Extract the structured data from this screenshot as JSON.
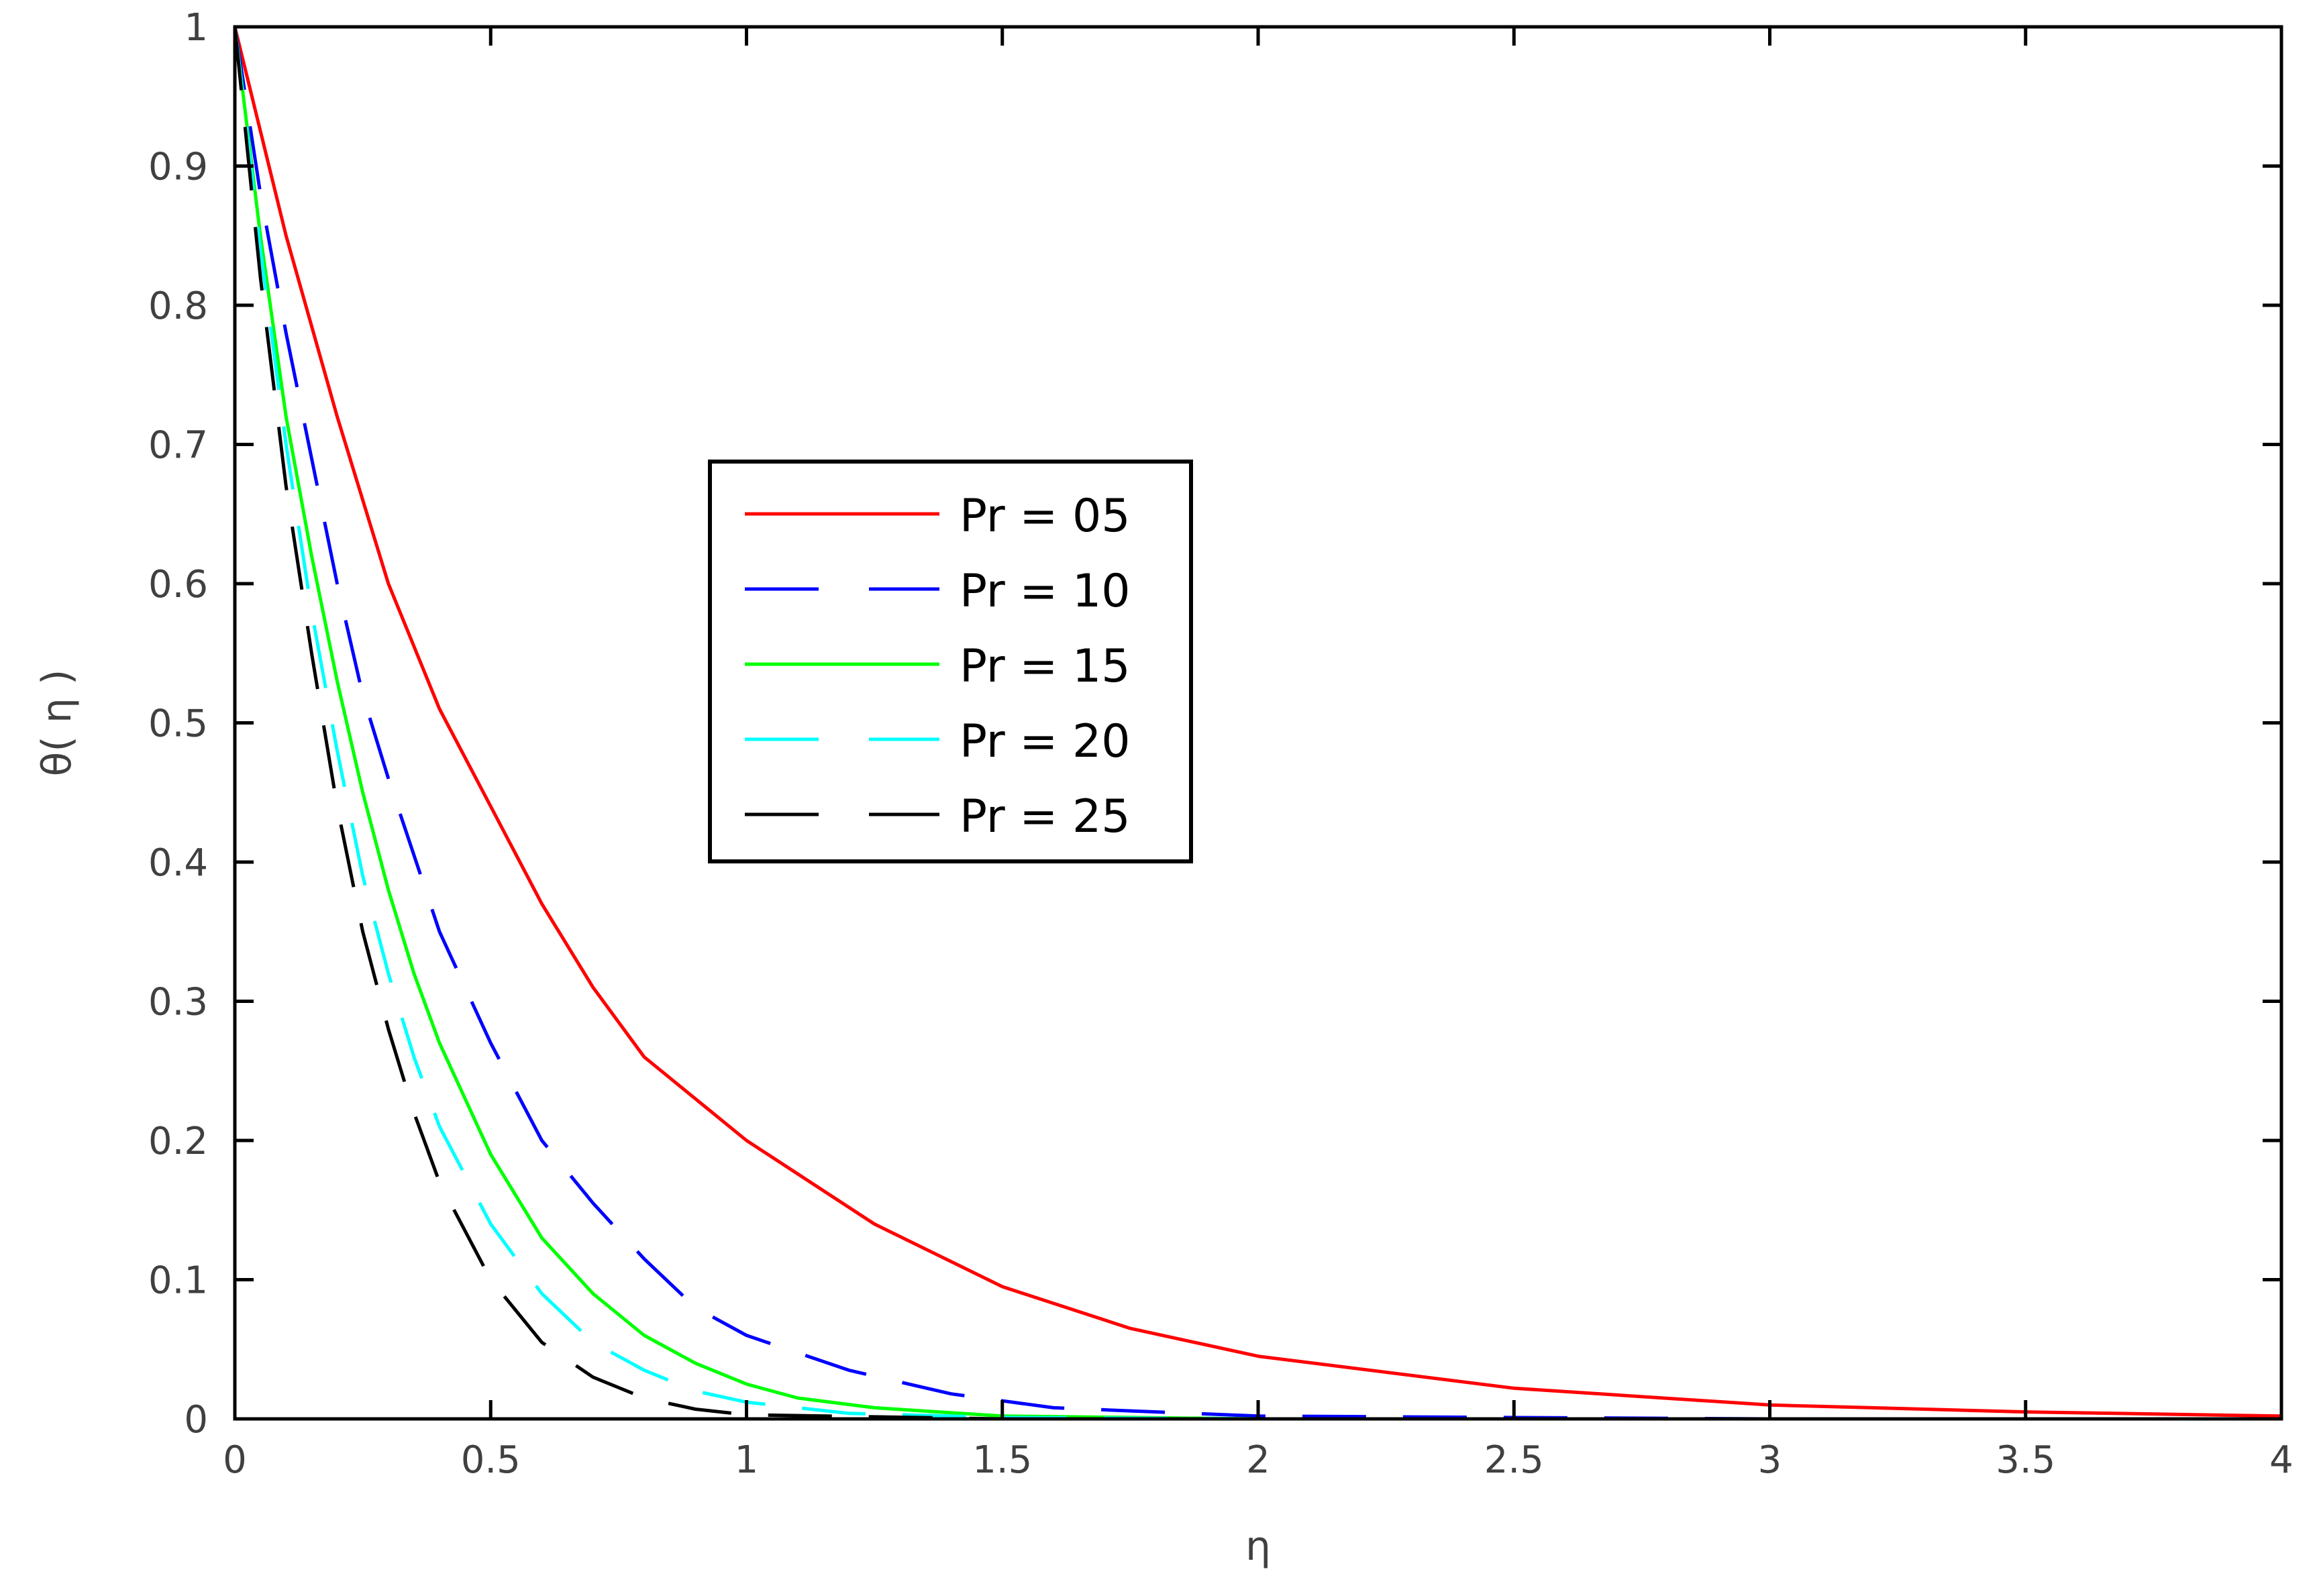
{
  "chart_data": {
    "type": "line",
    "title": "",
    "xlabel": "η",
    "ylabel": "θ( η )",
    "xlim": [
      0,
      4
    ],
    "ylim": [
      0,
      1
    ],
    "xticks": [
      "0",
      "0.5",
      "1",
      "1.5",
      "2",
      "2.5",
      "3",
      "3.5",
      "4"
    ],
    "yticks": [
      "0",
      "0.1",
      "0.2",
      "0.3",
      "0.4",
      "0.5",
      "0.6",
      "0.7",
      "0.8",
      "0.9",
      "1"
    ],
    "grid": false,
    "legend_position": "center-left",
    "series": [
      {
        "name": "Pr = 05",
        "color": "#ff0000",
        "style": "solid",
        "x": [
          0,
          0.1,
          0.2,
          0.3,
          0.4,
          0.5,
          0.6,
          0.7,
          0.8,
          0.9,
          1.0,
          1.25,
          1.5,
          1.75,
          2.0,
          2.5,
          3.0,
          3.5,
          4.0
        ],
        "y": [
          1.0,
          0.85,
          0.72,
          0.6,
          0.51,
          0.44,
          0.37,
          0.31,
          0.26,
          0.23,
          0.2,
          0.14,
          0.095,
          0.065,
          0.045,
          0.022,
          0.01,
          0.005,
          0.002
        ]
      },
      {
        "name": "Pr = 10",
        "color": "#0000ff",
        "style": "dashed",
        "x": [
          0,
          0.05,
          0.1,
          0.15,
          0.2,
          0.25,
          0.3,
          0.4,
          0.5,
          0.6,
          0.7,
          0.8,
          0.9,
          1.0,
          1.2,
          1.4,
          1.6,
          2.0,
          3.0,
          4.0
        ],
        "y": [
          1.0,
          0.88,
          0.78,
          0.69,
          0.6,
          0.52,
          0.46,
          0.35,
          0.27,
          0.2,
          0.155,
          0.115,
          0.08,
          0.06,
          0.035,
          0.018,
          0.008,
          0.002,
          0.0,
          0.0
        ]
      },
      {
        "name": "Pr = 15",
        "color": "#00ff00",
        "style": "solid",
        "x": [
          0,
          0.05,
          0.1,
          0.15,
          0.2,
          0.25,
          0.3,
          0.35,
          0.4,
          0.5,
          0.6,
          0.7,
          0.8,
          0.9,
          1.0,
          1.1,
          1.25,
          1.5,
          2.0,
          4.0
        ],
        "y": [
          1.0,
          0.85,
          0.72,
          0.62,
          0.53,
          0.45,
          0.38,
          0.32,
          0.27,
          0.19,
          0.13,
          0.09,
          0.06,
          0.04,
          0.025,
          0.015,
          0.008,
          0.002,
          0.0,
          0.0
        ]
      },
      {
        "name": "Pr = 20",
        "color": "#00ffff",
        "style": "dashed",
        "x": [
          0,
          0.05,
          0.1,
          0.15,
          0.2,
          0.25,
          0.3,
          0.35,
          0.4,
          0.5,
          0.6,
          0.7,
          0.8,
          0.9,
          1.0,
          1.2,
          1.5,
          2.0,
          3.0,
          4.0
        ],
        "y": [
          1.0,
          0.84,
          0.7,
          0.58,
          0.48,
          0.39,
          0.32,
          0.26,
          0.21,
          0.14,
          0.09,
          0.055,
          0.035,
          0.02,
          0.012,
          0.004,
          0.001,
          0.0,
          0.0,
          0.0
        ]
      },
      {
        "name": "Pr = 25",
        "color": "#000000",
        "style": "dashed",
        "x": [
          0,
          0.05,
          0.1,
          0.15,
          0.2,
          0.25,
          0.3,
          0.35,
          0.4,
          0.5,
          0.6,
          0.7,
          0.8,
          0.9,
          1.0,
          1.5,
          2.0,
          3.0,
          4.0
        ],
        "y": [
          1.0,
          0.82,
          0.67,
          0.55,
          0.44,
          0.35,
          0.28,
          0.22,
          0.17,
          0.1,
          0.055,
          0.03,
          0.015,
          0.007,
          0.003,
          0.0,
          0.0,
          0.0,
          0.0
        ]
      }
    ]
  }
}
